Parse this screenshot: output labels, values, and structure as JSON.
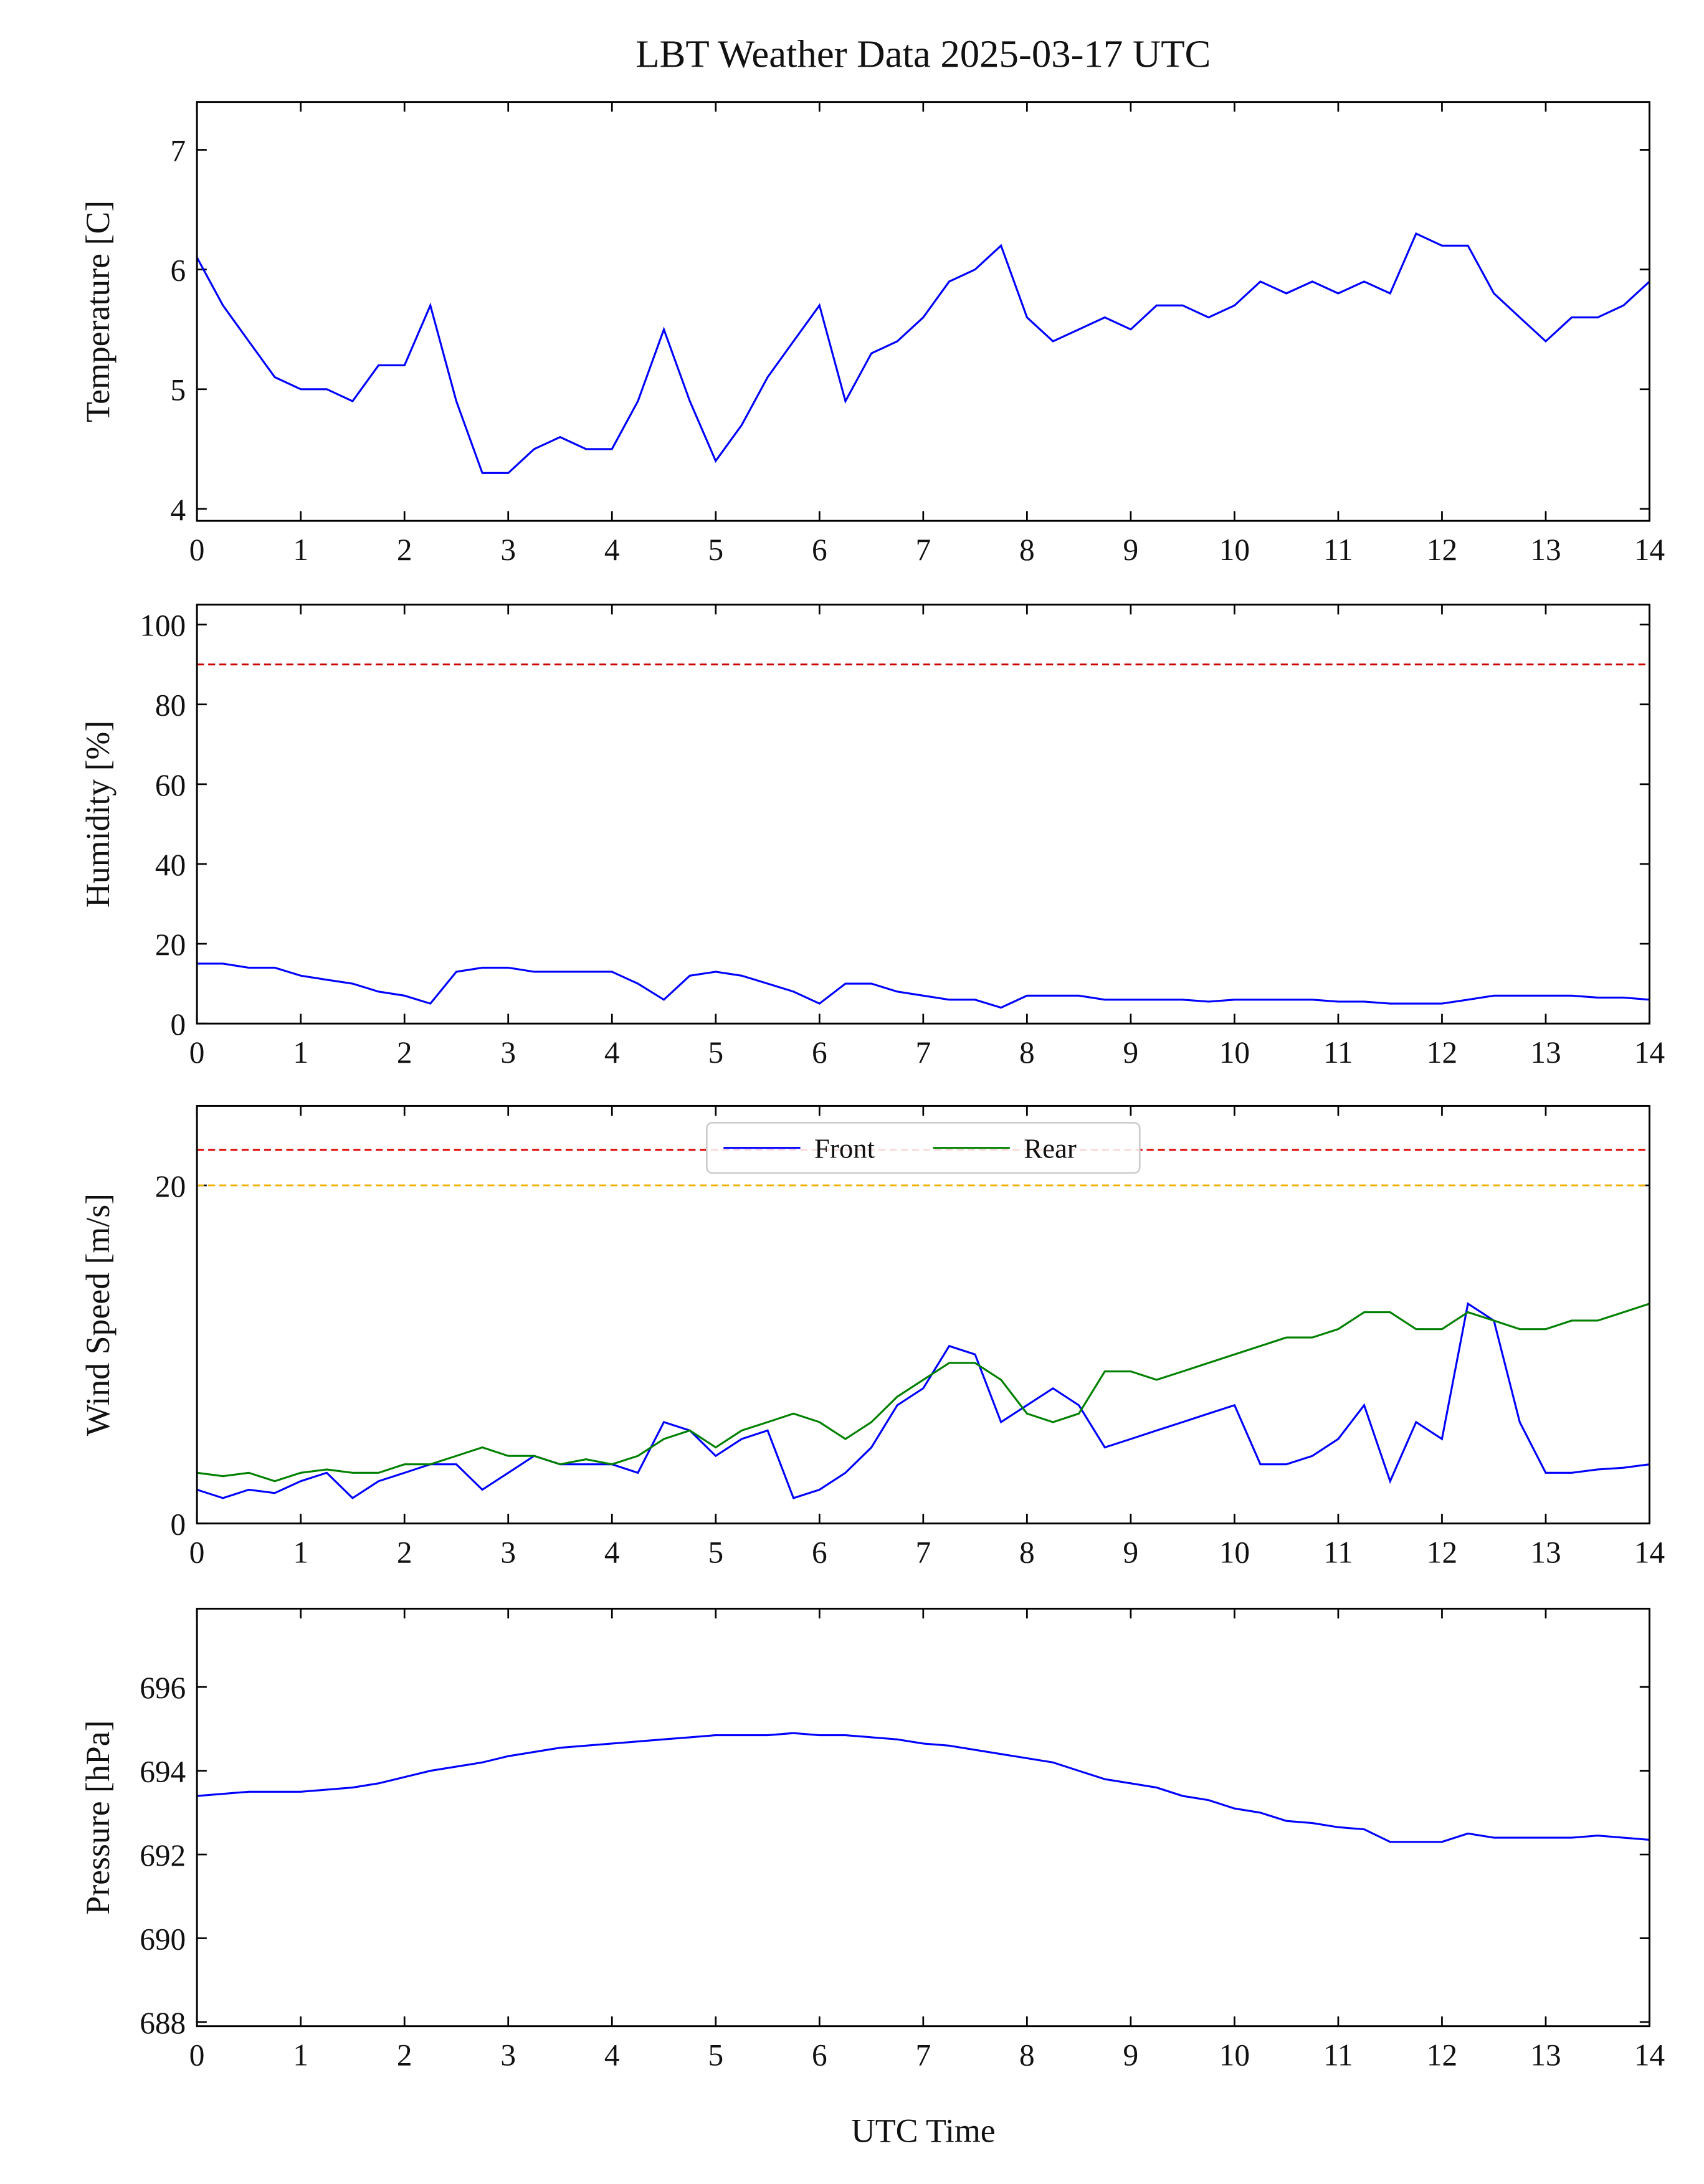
{
  "chart_data": [
    {
      "type": "line",
      "title": "LBT Weather Data 2025-03-17 UTC",
      "ylabel": "Temperature [C]",
      "x": [
        0,
        0.25,
        0.5,
        0.75,
        1,
        1.25,
        1.5,
        1.75,
        2,
        2.25,
        2.5,
        2.75,
        3,
        3.25,
        3.5,
        3.75,
        4,
        4.25,
        4.5,
        4.75,
        5,
        5.25,
        5.5,
        5.75,
        6,
        6.25,
        6.5,
        6.75,
        7,
        7.25,
        7.5,
        7.75,
        8,
        8.25,
        8.5,
        8.75,
        9,
        9.25,
        9.5,
        9.75,
        10,
        10.25,
        10.5,
        10.75,
        11,
        11.25,
        11.5,
        11.75,
        12,
        12.25,
        12.5,
        12.75,
        13,
        13.25,
        13.5,
        13.75,
        14
      ],
      "series": [
        {
          "color": "#0000ff",
          "values": [
            6.1,
            5.7,
            5.4,
            5.1,
            5.0,
            5.0,
            4.9,
            5.2,
            5.2,
            5.7,
            4.9,
            4.3,
            4.3,
            4.5,
            4.6,
            4.5,
            4.5,
            4.9,
            5.5,
            4.9,
            4.4,
            4.7,
            5.1,
            5.4,
            5.7,
            4.9,
            5.3,
            5.4,
            5.6,
            5.9,
            6.0,
            6.2,
            5.6,
            5.4,
            5.5,
            5.6,
            5.5,
            5.7,
            5.7,
            5.6,
            5.7,
            5.9,
            5.8,
            5.9,
            5.8,
            5.9,
            5.8,
            6.3,
            6.2,
            6.2,
            5.8,
            5.6,
            5.4,
            5.6,
            5.6,
            5.7,
            5.9
          ]
        }
      ],
      "xlim": [
        0,
        14
      ],
      "xticks": [
        0,
        1,
        2,
        3,
        4,
        5,
        6,
        7,
        8,
        9,
        10,
        11,
        12,
        13,
        14
      ],
      "ylim": [
        3.9,
        7.4
      ],
      "yticks": [
        4,
        5,
        6,
        7
      ]
    },
    {
      "type": "line",
      "ylabel": "Humidity [%]",
      "x": [
        0,
        0.25,
        0.5,
        0.75,
        1,
        1.25,
        1.5,
        1.75,
        2,
        2.25,
        2.5,
        2.75,
        3,
        3.25,
        3.5,
        3.75,
        4,
        4.25,
        4.5,
        4.75,
        5,
        5.25,
        5.5,
        5.75,
        6,
        6.25,
        6.5,
        6.75,
        7,
        7.25,
        7.5,
        7.75,
        8,
        8.25,
        8.5,
        8.75,
        9,
        9.25,
        9.5,
        9.75,
        10,
        10.25,
        10.5,
        10.75,
        11,
        11.25,
        11.5,
        11.75,
        12,
        12.25,
        12.5,
        12.75,
        13,
        13.25,
        13.5,
        13.75,
        14
      ],
      "series": [
        {
          "color": "#0000ff",
          "values": [
            15,
            15,
            14,
            14,
            12,
            11,
            10,
            8,
            7,
            5,
            13,
            14,
            14,
            13,
            13,
            13,
            13,
            10,
            6,
            12,
            13,
            12,
            10,
            8,
            5,
            10,
            10,
            8,
            7,
            6,
            6,
            4,
            7,
            7,
            7,
            6,
            6,
            6,
            6,
            5.5,
            6,
            6,
            6,
            6,
            5.5,
            5.5,
            5,
            5,
            5,
            6,
            7,
            7,
            7,
            7,
            6.5,
            6.5,
            6
          ]
        }
      ],
      "hlines": [
        {
          "value": 90,
          "color": "#cc0000"
        }
      ],
      "xlim": [
        0,
        14
      ],
      "xticks": [
        0,
        1,
        2,
        3,
        4,
        5,
        6,
        7,
        8,
        9,
        10,
        11,
        12,
        13,
        14
      ],
      "ylim": [
        0,
        105
      ],
      "yticks": [
        0,
        20,
        40,
        60,
        80,
        100
      ]
    },
    {
      "type": "line",
      "ylabel": "Wind Speed [m/s]",
      "legend": "upper center",
      "x": [
        0,
        0.25,
        0.5,
        0.75,
        1,
        1.25,
        1.5,
        1.75,
        2,
        2.25,
        2.5,
        2.75,
        3,
        3.25,
        3.5,
        3.75,
        4,
        4.25,
        4.5,
        4.75,
        5,
        5.25,
        5.5,
        5.75,
        6,
        6.25,
        6.5,
        6.75,
        7,
        7.25,
        7.5,
        7.75,
        8,
        8.25,
        8.5,
        8.75,
        9,
        9.25,
        9.5,
        9.75,
        10,
        10.25,
        10.5,
        10.75,
        11,
        11.25,
        11.5,
        11.75,
        12,
        12.25,
        12.5,
        12.75,
        13,
        13.25,
        13.5,
        13.75,
        14
      ],
      "series": [
        {
          "name": "Front",
          "color": "#0000ff",
          "values": [
            2,
            1.5,
            2,
            1.8,
            2.5,
            3,
            1.5,
            2.5,
            3,
            3.5,
            3.5,
            2,
            3,
            4,
            3.5,
            3.5,
            3.5,
            3,
            6,
            5.5,
            4,
            5,
            5.5,
            1.5,
            2,
            3,
            4.5,
            7,
            8,
            10.5,
            10,
            6,
            7,
            8,
            7,
            4.5,
            5,
            5.5,
            6,
            6.5,
            7,
            3.5,
            3.5,
            4,
            5,
            7,
            2.5,
            6,
            5,
            13,
            12,
            6,
            3,
            3,
            3.2,
            3.3,
            3.5
          ]
        },
        {
          "name": "Rear",
          "color": "#008000",
          "values": [
            3,
            2.8,
            3,
            2.5,
            3,
            3.2,
            3,
            3,
            3.5,
            3.5,
            4,
            4.5,
            4,
            4,
            3.5,
            3.8,
            3.5,
            4,
            5,
            5.5,
            4.5,
            5.5,
            6,
            6.5,
            6,
            5,
            6,
            7.5,
            8.5,
            9.5,
            9.5,
            8.5,
            6.5,
            6,
            6.5,
            9,
            9,
            8.5,
            9,
            9.5,
            10,
            10.5,
            11,
            11,
            11.5,
            12.5,
            12.5,
            11.5,
            11.5,
            12.5,
            12,
            11.5,
            11.5,
            12,
            12,
            12.5,
            13
          ]
        }
      ],
      "hlines": [
        {
          "value": 22.1,
          "color": "#dd0000"
        },
        {
          "value": 20,
          "color": "#f0b000"
        }
      ],
      "xlim": [
        0,
        14
      ],
      "xticks": [
        0,
        1,
        2,
        3,
        4,
        5,
        6,
        7,
        8,
        9,
        10,
        11,
        12,
        13,
        14
      ],
      "ylim": [
        0,
        24.7
      ],
      "yticks": [
        0,
        20
      ]
    },
    {
      "type": "line",
      "ylabel": "Pressure [hPa]",
      "xlabel": "UTC Time",
      "x": [
        0,
        0.25,
        0.5,
        0.75,
        1,
        1.25,
        1.5,
        1.75,
        2,
        2.25,
        2.5,
        2.75,
        3,
        3.25,
        3.5,
        3.75,
        4,
        4.25,
        4.5,
        4.75,
        5,
        5.25,
        5.5,
        5.75,
        6,
        6.25,
        6.5,
        6.75,
        7,
        7.25,
        7.5,
        7.75,
        8,
        8.25,
        8.5,
        8.75,
        9,
        9.25,
        9.5,
        9.75,
        10,
        10.25,
        10.5,
        10.75,
        11,
        11.25,
        11.5,
        11.75,
        12,
        12.25,
        12.5,
        12.75,
        13,
        13.25,
        13.5,
        13.75,
        14
      ],
      "series": [
        {
          "color": "#0000ff",
          "values": [
            693.4,
            693.45,
            693.5,
            693.5,
            693.5,
            693.55,
            693.6,
            693.7,
            693.85,
            694.0,
            694.1,
            694.2,
            694.35,
            694.45,
            694.55,
            694.6,
            694.65,
            694.7,
            694.75,
            694.8,
            694.85,
            694.85,
            694.85,
            694.9,
            694.85,
            694.85,
            694.8,
            694.75,
            694.65,
            694.6,
            694.5,
            694.4,
            694.3,
            694.2,
            694.0,
            693.8,
            693.7,
            693.6,
            693.4,
            693.3,
            693.1,
            693.0,
            692.8,
            692.75,
            692.65,
            692.6,
            692.3,
            692.3,
            692.3,
            692.5,
            692.4,
            692.4,
            692.4,
            692.4,
            692.45,
            692.4,
            692.35
          ]
        }
      ],
      "xlim": [
        0,
        14
      ],
      "xticks": [
        0,
        1,
        2,
        3,
        4,
        5,
        6,
        7,
        8,
        9,
        10,
        11,
        12,
        13,
        14
      ],
      "ylim": [
        687.9,
        697.87
      ],
      "yticks": [
        688,
        690,
        692,
        694,
        696
      ]
    }
  ]
}
